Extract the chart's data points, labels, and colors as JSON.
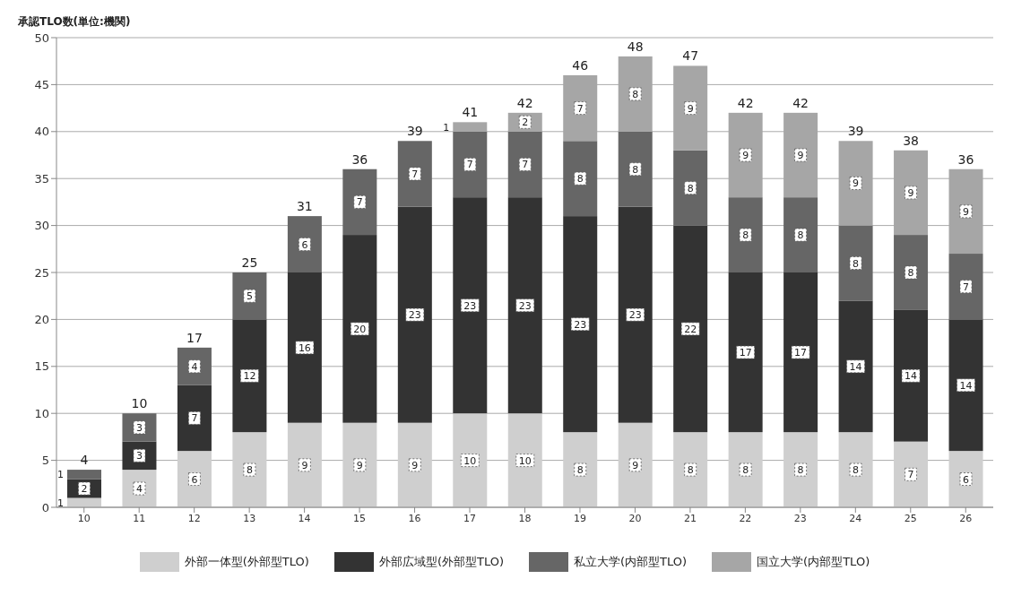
{
  "chart_data": {
    "type": "bar",
    "ylabel": "承認TLO数(単位:機関)",
    "categories": [
      "10",
      "11",
      "12",
      "13",
      "14",
      "15",
      "16",
      "17",
      "18",
      "19",
      "20",
      "21",
      "22",
      "23",
      "24",
      "25",
      "26"
    ],
    "stacked": true,
    "series": [
      {
        "name": "外部一体型(外部型TLO)",
        "color": "#cfcfcf",
        "values": [
          1,
          4,
          6,
          8,
          9,
          9,
          9,
          10,
          10,
          8,
          9,
          8,
          8,
          8,
          8,
          7,
          6
        ]
      },
      {
        "name": "外部広域型(外部型TLO)",
        "color": "#333333",
        "values": [
          2,
          3,
          7,
          12,
          16,
          20,
          23,
          23,
          23,
          23,
          23,
          22,
          17,
          17,
          14,
          14,
          14
        ]
      },
      {
        "name": "私立大学(内部型TLO)",
        "color": "#666666",
        "values": [
          1,
          3,
          4,
          5,
          6,
          7,
          7,
          7,
          7,
          8,
          8,
          8,
          8,
          8,
          8,
          8,
          7
        ]
      },
      {
        "name": "国立大学(内部型TLO)",
        "color": "#a6a6a6",
        "values": [
          null,
          null,
          null,
          null,
          null,
          null,
          null,
          1,
          2,
          7,
          8,
          9,
          9,
          9,
          9,
          9,
          9
        ]
      }
    ],
    "totals": [
      "4",
      "10",
      "17",
      "25",
      "31",
      "36",
      "39",
      "41",
      "42",
      "46",
      "48",
      "47",
      "42",
      "42",
      "39",
      "38",
      "36"
    ],
    "ylim": [
      0,
      50
    ],
    "yticks": [
      0,
      5,
      10,
      15,
      20,
      25,
      30,
      35,
      40,
      45,
      50
    ],
    "grid": "y",
    "data_labels": true,
    "legend": "bottom"
  }
}
